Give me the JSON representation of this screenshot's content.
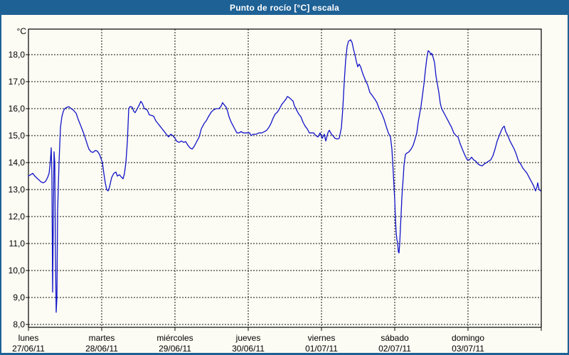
{
  "window": {
    "title": "Punto de rocío [°C] escala"
  },
  "colors": {
    "titlebar": "#1e6195",
    "panel_background": "#fcfcf4",
    "series_line": "#1213c8",
    "grid": "#111111",
    "text": "#000000"
  },
  "chart_data": {
    "type": "line",
    "title": "Punto de rocío [°C] escala",
    "ylabel": "°C",
    "ylim": [
      8.0,
      19.0
    ],
    "xlim_days": [
      0,
      7
    ],
    "grid": "dashed",
    "legend": "none",
    "yticks": [
      8,
      9,
      10,
      11,
      12,
      13,
      14,
      15,
      16,
      17,
      18
    ],
    "ytick_labels": [
      "8,0",
      "9,0",
      "10,0",
      "11,0",
      "12,0",
      "13,0",
      "14,0",
      "15,0",
      "16,0",
      "17,0",
      "18,0"
    ],
    "x_days": [
      {
        "name": "lunes",
        "date": "27/06/11"
      },
      {
        "name": "martes",
        "date": "28/06/11"
      },
      {
        "name": "miércoles",
        "date": "29/06/11"
      },
      {
        "name": "jueves",
        "date": "30/06/11"
      },
      {
        "name": "viernes",
        "date": "01/07/11"
      },
      {
        "name": "sábado",
        "date": "02/07/11"
      },
      {
        "name": "domingo",
        "date": "03/07/11"
      }
    ],
    "series": [
      {
        "name": "Punto de rocío [°C]",
        "color": "#1213c8",
        "x_unit": "days_from_monday_start",
        "y_unit": "°C",
        "points": [
          [
            0,
            13.5
          ],
          [
            0.029,
            13.55
          ],
          [
            0.058,
            13.6
          ],
          [
            0.087,
            13.5
          ],
          [
            0.117,
            13.42
          ],
          [
            0.146,
            13.35
          ],
          [
            0.175,
            13.28
          ],
          [
            0.204,
            13.25
          ],
          [
            0.233,
            13.3
          ],
          [
            0.262,
            13.45
          ],
          [
            0.282,
            13.6
          ],
          [
            0.301,
            14.1
          ],
          [
            0.311,
            14.55
          ],
          [
            0.32,
            13.5
          ],
          [
            0.33,
            9.2
          ],
          [
            0.34,
            12.0
          ],
          [
            0.35,
            14.4
          ],
          [
            0.359,
            14.0
          ],
          [
            0.369,
            10.5
          ],
          [
            0.379,
            8.45
          ],
          [
            0.388,
            9.0
          ],
          [
            0.398,
            12.2
          ],
          [
            0.417,
            14.0
          ],
          [
            0.437,
            15.3
          ],
          [
            0.456,
            15.7
          ],
          [
            0.476,
            15.9
          ],
          [
            0.495,
            16.0
          ],
          [
            0.524,
            16.05
          ],
          [
            0.553,
            16.07
          ],
          [
            0.583,
            16.0
          ],
          [
            0.612,
            15.95
          ],
          [
            0.65,
            15.83
          ],
          [
            0.68,
            15.6
          ],
          [
            0.709,
            15.4
          ],
          [
            0.748,
            15.13
          ],
          [
            0.777,
            14.9
          ],
          [
            0.806,
            14.65
          ],
          [
            0.825,
            14.5
          ],
          [
            0.854,
            14.4
          ],
          [
            0.883,
            14.38
          ],
          [
            0.913,
            14.45
          ],
          [
            0.942,
            14.42
          ],
          [
            0.971,
            14.3
          ],
          [
            0.99,
            14.15
          ],
          [
            1.01,
            14.0
          ],
          [
            1.029,
            13.6
          ],
          [
            1.049,
            13.25
          ],
          [
            1.068,
            13.0
          ],
          [
            1.087,
            12.95
          ],
          [
            1.107,
            13.1
          ],
          [
            1.136,
            13.45
          ],
          [
            1.165,
            13.6
          ],
          [
            1.194,
            13.65
          ],
          [
            1.214,
            13.5
          ],
          [
            1.243,
            13.55
          ],
          [
            1.272,
            13.45
          ],
          [
            1.291,
            13.4
          ],
          [
            1.311,
            13.6
          ],
          [
            1.33,
            14.0
          ],
          [
            1.35,
            14.8
          ],
          [
            1.369,
            16.0
          ],
          [
            1.388,
            16.08
          ],
          [
            1.417,
            16.05
          ],
          [
            1.437,
            15.9
          ],
          [
            1.456,
            15.85
          ],
          [
            1.485,
            16.0
          ],
          [
            1.515,
            16.15
          ],
          [
            1.534,
            16.27
          ],
          [
            1.553,
            16.2
          ],
          [
            1.583,
            16.0
          ],
          [
            1.621,
            15.95
          ],
          [
            1.65,
            15.77
          ],
          [
            1.68,
            15.75
          ],
          [
            1.709,
            15.72
          ],
          [
            1.738,
            15.55
          ],
          [
            1.767,
            15.45
          ],
          [
            1.796,
            15.35
          ],
          [
            1.825,
            15.25
          ],
          [
            1.854,
            15.15
          ],
          [
            1.883,
            15.05
          ],
          [
            1.913,
            14.95
          ],
          [
            1.942,
            15.05
          ],
          [
            1.971,
            15.0
          ],
          [
            2.0,
            14.9
          ],
          [
            2.029,
            14.78
          ],
          [
            2.058,
            14.75
          ],
          [
            2.087,
            14.8
          ],
          [
            2.117,
            14.75
          ],
          [
            2.146,
            14.78
          ],
          [
            2.175,
            14.65
          ],
          [
            2.204,
            14.55
          ],
          [
            2.233,
            14.5
          ],
          [
            2.262,
            14.6
          ],
          [
            2.291,
            14.75
          ],
          [
            2.33,
            14.95
          ],
          [
            2.359,
            15.25
          ],
          [
            2.398,
            15.45
          ],
          [
            2.427,
            15.55
          ],
          [
            2.456,
            15.7
          ],
          [
            2.495,
            15.87
          ],
          [
            2.524,
            15.95
          ],
          [
            2.563,
            16.0
          ],
          [
            2.602,
            16.0
          ],
          [
            2.631,
            16.1
          ],
          [
            2.65,
            16.22
          ],
          [
            2.67,
            16.15
          ],
          [
            2.699,
            16.05
          ],
          [
            2.718,
            15.9
          ],
          [
            2.738,
            15.7
          ],
          [
            2.767,
            15.5
          ],
          [
            2.786,
            15.4
          ],
          [
            2.816,
            15.25
          ],
          [
            2.845,
            15.1
          ],
          [
            2.874,
            15.1
          ],
          [
            2.903,
            15.15
          ],
          [
            2.932,
            15.1
          ],
          [
            2.961,
            15.1
          ],
          [
            2.99,
            15.1
          ],
          [
            3.019,
            15.1
          ],
          [
            3.039,
            15.0
          ],
          [
            3.068,
            15.05
          ],
          [
            3.107,
            15.05
          ],
          [
            3.146,
            15.1
          ],
          [
            3.184,
            15.1
          ],
          [
            3.223,
            15.15
          ],
          [
            3.252,
            15.2
          ],
          [
            3.281,
            15.3
          ],
          [
            3.311,
            15.45
          ],
          [
            3.34,
            15.65
          ],
          [
            3.369,
            15.8
          ],
          [
            3.398,
            15.87
          ],
          [
            3.427,
            16.0
          ],
          [
            3.456,
            16.15
          ],
          [
            3.485,
            16.25
          ],
          [
            3.515,
            16.35
          ],
          [
            3.534,
            16.45
          ],
          [
            3.553,
            16.42
          ],
          [
            3.583,
            16.35
          ],
          [
            3.612,
            16.28
          ],
          [
            3.631,
            16.1
          ],
          [
            3.66,
            15.95
          ],
          [
            3.689,
            15.8
          ],
          [
            3.718,
            15.7
          ],
          [
            3.748,
            15.5
          ],
          [
            3.777,
            15.35
          ],
          [
            3.806,
            15.25
          ],
          [
            3.835,
            15.1
          ],
          [
            3.864,
            15.1
          ],
          [
            3.893,
            15.1
          ],
          [
            3.922,
            15.0
          ],
          [
            3.951,
            14.95
          ],
          [
            3.981,
            15.1
          ],
          [
            4.01,
            14.9
          ],
          [
            4.039,
            15.05
          ],
          [
            4.058,
            14.8
          ],
          [
            4.087,
            15.1
          ],
          [
            4.107,
            15.2
          ],
          [
            4.136,
            15.05
          ],
          [
            4.155,
            15.0
          ],
          [
            4.184,
            14.9
          ],
          [
            4.214,
            14.87
          ],
          [
            4.243,
            14.9
          ],
          [
            4.272,
            15.3
          ],
          [
            4.291,
            16.0
          ],
          [
            4.311,
            17.0
          ],
          [
            4.33,
            17.8
          ],
          [
            4.35,
            18.3
          ],
          [
            4.369,
            18.5
          ],
          [
            4.398,
            18.55
          ],
          [
            4.417,
            18.45
          ],
          [
            4.437,
            18.2
          ],
          [
            4.456,
            18.0
          ],
          [
            4.476,
            17.75
          ],
          [
            4.495,
            17.55
          ],
          [
            4.515,
            17.65
          ],
          [
            4.534,
            17.55
          ],
          [
            4.563,
            17.3
          ],
          [
            4.592,
            17.1
          ],
          [
            4.631,
            16.87
          ],
          [
            4.66,
            16.6
          ],
          [
            4.689,
            16.5
          ],
          [
            4.728,
            16.35
          ],
          [
            4.757,
            16.22
          ],
          [
            4.786,
            16.0
          ],
          [
            4.825,
            15.8
          ],
          [
            4.854,
            15.6
          ],
          [
            4.883,
            15.35
          ],
          [
            4.913,
            15.1
          ],
          [
            4.942,
            14.95
          ],
          [
            4.961,
            14.5
          ],
          [
            4.981,
            13.6
          ],
          [
            5.0,
            12.6
          ],
          [
            5.01,
            11.9
          ],
          [
            5.019,
            11.4
          ],
          [
            5.029,
            11.15
          ],
          [
            5.039,
            11.05
          ],
          [
            5.049,
            10.7
          ],
          [
            5.058,
            10.65
          ],
          [
            5.068,
            11.0
          ],
          [
            5.078,
            11.6
          ],
          [
            5.087,
            12.1
          ],
          [
            5.097,
            12.7
          ],
          [
            5.107,
            13.1
          ],
          [
            5.117,
            13.5
          ],
          [
            5.126,
            13.9
          ],
          [
            5.136,
            14.1
          ],
          [
            5.146,
            14.3
          ],
          [
            5.165,
            14.35
          ],
          [
            5.194,
            14.4
          ],
          [
            5.223,
            14.5
          ],
          [
            5.252,
            14.65
          ],
          [
            5.281,
            14.9
          ],
          [
            5.301,
            15.1
          ],
          [
            5.32,
            15.5
          ],
          [
            5.34,
            15.8
          ],
          [
            5.359,
            16.1
          ],
          [
            5.379,
            16.5
          ],
          [
            5.398,
            16.9
          ],
          [
            5.417,
            17.4
          ],
          [
            5.437,
            17.85
          ],
          [
            5.456,
            18.15
          ],
          [
            5.476,
            18.1
          ],
          [
            5.495,
            18.0
          ],
          [
            5.505,
            18.05
          ],
          [
            5.524,
            17.9
          ],
          [
            5.544,
            17.7
          ],
          [
            5.563,
            17.2
          ],
          [
            5.583,
            16.9
          ],
          [
            5.602,
            16.6
          ],
          [
            5.621,
            16.2
          ],
          [
            5.641,
            16.0
          ],
          [
            5.66,
            15.9
          ],
          [
            5.689,
            15.75
          ],
          [
            5.718,
            15.6
          ],
          [
            5.748,
            15.45
          ],
          [
            5.777,
            15.3
          ],
          [
            5.806,
            15.1
          ],
          [
            5.835,
            15.0
          ],
          [
            5.864,
            14.95
          ],
          [
            5.893,
            14.7
          ],
          [
            5.922,
            14.5
          ],
          [
            5.961,
            14.25
          ],
          [
            5.99,
            14.1
          ],
          [
            6.019,
            14.1
          ],
          [
            6.049,
            14.2
          ],
          [
            6.078,
            14.1
          ],
          [
            6.107,
            14.05
          ],
          [
            6.136,
            13.95
          ],
          [
            6.165,
            13.9
          ],
          [
            6.194,
            13.88
          ],
          [
            6.223,
            13.95
          ],
          [
            6.252,
            14.0
          ],
          [
            6.281,
            14.05
          ],
          [
            6.311,
            14.1
          ],
          [
            6.34,
            14.25
          ],
          [
            6.369,
            14.5
          ],
          [
            6.398,
            14.8
          ],
          [
            6.427,
            15.0
          ],
          [
            6.456,
            15.2
          ],
          [
            6.476,
            15.3
          ],
          [
            6.495,
            15.35
          ],
          [
            6.515,
            15.15
          ],
          [
            6.544,
            15.0
          ],
          [
            6.573,
            14.8
          ],
          [
            6.602,
            14.65
          ],
          [
            6.631,
            14.5
          ],
          [
            6.66,
            14.3
          ],
          [
            6.689,
            14.05
          ],
          [
            6.718,
            13.95
          ],
          [
            6.748,
            13.8
          ],
          [
            6.777,
            13.7
          ],
          [
            6.806,
            13.6
          ],
          [
            6.835,
            13.45
          ],
          [
            6.864,
            13.3
          ],
          [
            6.893,
            13.15
          ],
          [
            6.922,
            12.95
          ],
          [
            6.942,
            13.1
          ],
          [
            6.951,
            13.25
          ],
          [
            6.971,
            13.0
          ],
          [
            6.99,
            12.95
          ]
        ]
      }
    ]
  }
}
